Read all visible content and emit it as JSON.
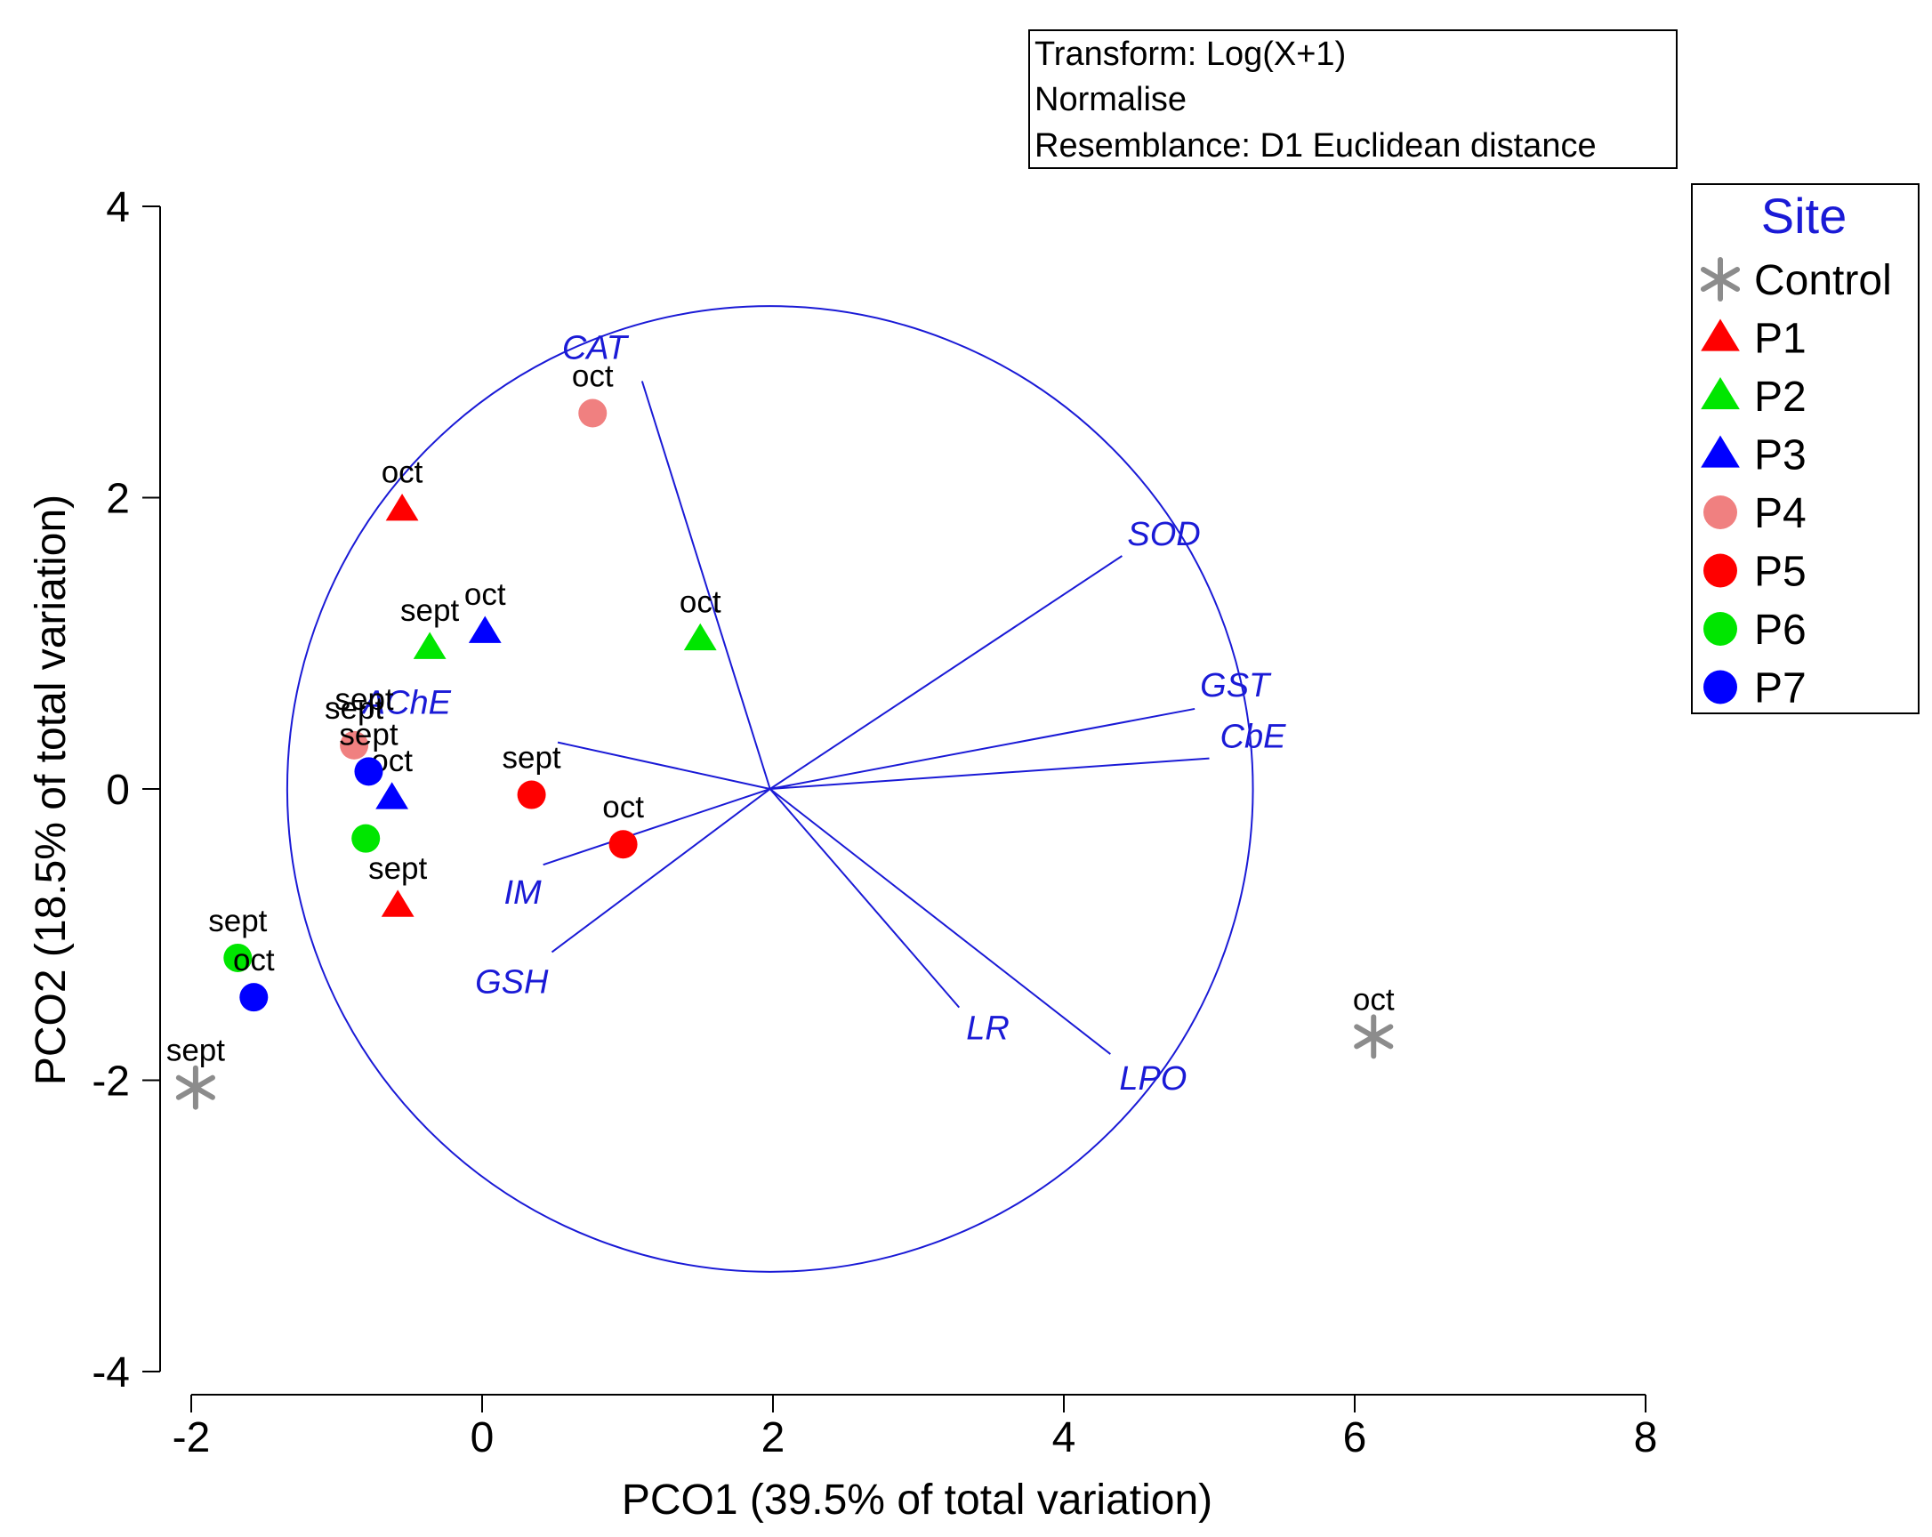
{
  "chart_data": {
    "type": "scatter",
    "subtype": "PCO ordination biplot",
    "xlabel": "PCO1 (39.5% of total variation)",
    "ylabel": "PCO2 (18.5% of total variation)",
    "xlim": [
      -2,
      8
    ],
    "ylim": [
      -4,
      4
    ],
    "xticks": [
      -2,
      0,
      2,
      4,
      6,
      8
    ],
    "yticks": [
      -4,
      -2,
      0,
      2,
      4
    ],
    "grid": false,
    "info_box": [
      "Transform: Log(X+1)",
      "Normalise",
      "Resemblance: D1 Euclidean distance"
    ],
    "legend": {
      "title": "Site",
      "position": "right",
      "title_color": "#1a1ad6",
      "entries": [
        {
          "name": "Control",
          "marker": "asterisk",
          "color": "#8c8c8c"
        },
        {
          "name": "P1",
          "marker": "triangle",
          "color": "#ff0000"
        },
        {
          "name": "P2",
          "marker": "triangle",
          "color": "#00e600"
        },
        {
          "name": "P3",
          "marker": "triangle",
          "color": "#0000ff"
        },
        {
          "name": "P4",
          "marker": "circle",
          "color": "#f08080"
        },
        {
          "name": "P5",
          "marker": "circle",
          "color": "#ff0000"
        },
        {
          "name": "P6",
          "marker": "circle",
          "color": "#00e600"
        },
        {
          "name": "P7",
          "marker": "circle",
          "color": "#0000ff"
        }
      ]
    },
    "points": [
      {
        "site": "Control",
        "label": "sept",
        "x": -1.97,
        "y": -2.05
      },
      {
        "site": "Control",
        "label": "oct",
        "x": 6.13,
        "y": -1.7
      },
      {
        "site": "P1",
        "label": "oct",
        "x": -0.55,
        "y": 1.92
      },
      {
        "site": "P1",
        "label": "sept",
        "x": -0.58,
        "y": -0.8
      },
      {
        "site": "P2",
        "label": "sept",
        "x": -0.36,
        "y": 0.97
      },
      {
        "site": "P2",
        "label": "oct",
        "x": 1.5,
        "y": 1.03
      },
      {
        "site": "P3",
        "label": "oct",
        "x": 0.02,
        "y": 1.08
      },
      {
        "site": "P3",
        "label": "oct",
        "x": -0.62,
        "y": -0.06
      },
      {
        "site": "P4",
        "label": "oct",
        "x": 0.76,
        "y": 2.58
      },
      {
        "site": "P4",
        "label": "sept",
        "x": -0.88,
        "y": 0.3
      },
      {
        "site": "P5",
        "label": "sept",
        "x": 0.34,
        "y": -0.04
      },
      {
        "site": "P5",
        "label": "oct",
        "x": 0.97,
        "y": -0.38
      },
      {
        "site": "P6",
        "label": "sept",
        "x": -1.68,
        "y": -1.16
      },
      {
        "site": "P6",
        "label": "",
        "x": -0.8,
        "y": -0.34
      },
      {
        "site": "P7",
        "label": "sept",
        "x": -0.78,
        "y": 0.12
      },
      {
        "site": "P7",
        "label": "oct",
        "x": -1.57,
        "y": -1.43
      }
    ],
    "extra_labels": [
      "sept"
    ],
    "vector_origin": [
      1.98,
      0.0
    ],
    "circle_radius": 3.32,
    "vectors": [
      {
        "name": "CAT",
        "x": 1.1,
        "y": 2.8
      },
      {
        "name": "SOD",
        "x": 4.4,
        "y": 1.6
      },
      {
        "name": "GST",
        "x": 4.9,
        "y": 0.55
      },
      {
        "name": "CbE",
        "x": 5.0,
        "y": 0.21
      },
      {
        "name": "AChE",
        "x": 0.52,
        "y": 0.32
      },
      {
        "name": "IM",
        "x": 0.42,
        "y": -0.52
      },
      {
        "name": "GSH",
        "x": 0.48,
        "y": -1.12
      },
      {
        "name": "LR",
        "x": 3.28,
        "y": -1.5
      },
      {
        "name": "LPO",
        "x": 4.32,
        "y": -1.82
      }
    ]
  }
}
